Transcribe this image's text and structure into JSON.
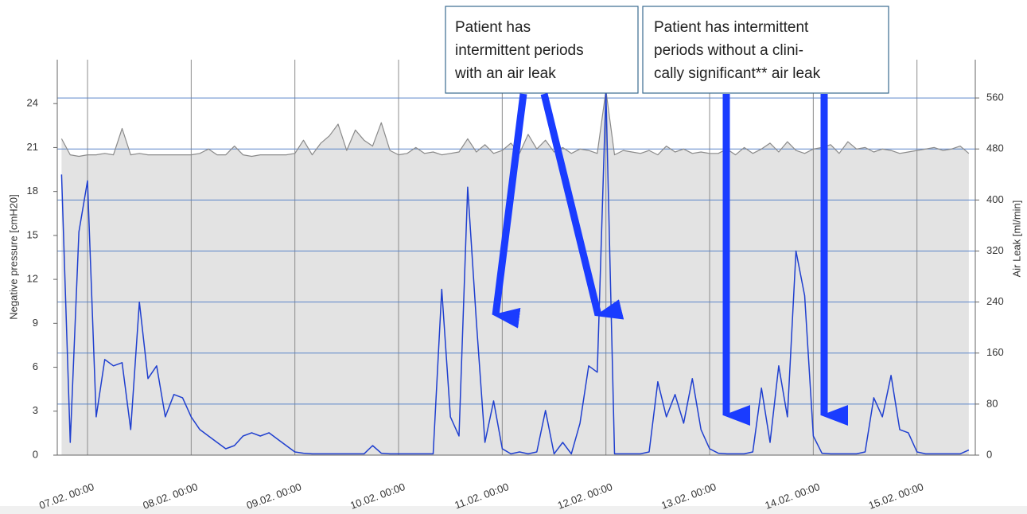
{
  "chart_data": {
    "type": "line",
    "y_label": "Negative pressure [cmH20]",
    "y2_label": "Air Leak [ml/min]",
    "x": [
      "06.02. 18:00",
      "06.02. 20:00",
      "06.02. 22:00",
      "07.02. 00:00",
      "07.02. 02:00",
      "07.02. 04:00",
      "07.02. 06:00",
      "07.02. 08:00",
      "07.02. 10:00",
      "07.02. 12:00",
      "07.02. 14:00",
      "07.02. 16:00",
      "07.02. 18:00",
      "07.02. 20:00",
      "07.02. 22:00",
      "08.02. 00:00",
      "08.02. 02:00",
      "08.02. 04:00",
      "08.02. 06:00",
      "08.02. 08:00",
      "08.02. 10:00",
      "08.02. 12:00",
      "08.02. 14:00",
      "08.02. 16:00",
      "08.02. 18:00",
      "08.02. 20:00",
      "08.02. 22:00",
      "09.02. 00:00",
      "09.02. 02:00",
      "09.02. 04:00",
      "09.02. 06:00",
      "09.02. 08:00",
      "09.02. 10:00",
      "09.02. 12:00",
      "09.02. 14:00",
      "09.02. 16:00",
      "09.02. 18:00",
      "09.02. 20:00",
      "09.02. 22:00",
      "10.02. 00:00",
      "10.02. 02:00",
      "10.02. 04:00",
      "10.02. 06:00",
      "10.02. 08:00",
      "10.02. 10:00",
      "10.02. 12:00",
      "10.02. 14:00",
      "10.02. 16:00",
      "10.02. 18:00",
      "10.02. 20:00",
      "10.02. 22:00",
      "11.02. 00:00",
      "11.02. 02:00",
      "11.02. 04:00",
      "11.02. 06:00",
      "11.02. 08:00",
      "11.02. 10:00",
      "11.02. 12:00",
      "11.02. 14:00",
      "11.02. 16:00",
      "11.02. 18:00",
      "11.02. 20:00",
      "11.02. 22:00",
      "12.02. 00:00",
      "12.02. 02:00",
      "12.02. 04:00",
      "12.02. 06:00",
      "12.02. 08:00",
      "12.02. 10:00",
      "12.02. 12:00",
      "12.02. 14:00",
      "12.02. 16:00",
      "12.02. 18:00",
      "12.02. 20:00",
      "12.02. 22:00",
      "13.02. 00:00",
      "13.02. 02:00",
      "13.02. 04:00",
      "13.02. 06:00",
      "13.02. 08:00",
      "13.02. 10:00",
      "13.02. 12:00",
      "13.02. 14:00",
      "13.02. 16:00",
      "13.02. 18:00",
      "13.02. 20:00",
      "13.02. 22:00",
      "14.02. 00:00",
      "14.02. 02:00",
      "14.02. 04:00",
      "14.02. 06:00",
      "14.02. 08:00",
      "14.02. 10:00",
      "14.02. 12:00",
      "14.02. 14:00",
      "14.02. 16:00",
      "14.02. 18:00",
      "14.02. 20:00",
      "14.02. 22:00",
      "15.02. 00:00",
      "15.02. 02:00",
      "15.02. 04:00",
      "15.02. 06:00",
      "15.02. 08:00",
      "15.02. 10:00",
      "15.02. 12:00"
    ],
    "series": [
      {
        "color": "#8a8a8a",
        "fill": "#e3e3e3",
        "axis": "y",
        "values": [
          21.6,
          20.5,
          20.4,
          20.5,
          20.5,
          20.6,
          20.5,
          22.3,
          20.5,
          20.6,
          20.5,
          20.5,
          20.5,
          20.5,
          20.5,
          20.5,
          20.6,
          20.9,
          20.5,
          20.5,
          21.1,
          20.5,
          20.4,
          20.5,
          20.5,
          20.5,
          20.5,
          20.6,
          21.5,
          20.5,
          21.3,
          21.8,
          22.6,
          20.8,
          22.2,
          21.5,
          21.1,
          22.7,
          20.8,
          20.5,
          20.6,
          21,
          20.6,
          20.7,
          20.5,
          20.6,
          20.7,
          21.6,
          20.7,
          21.2,
          20.6,
          20.8,
          21.3,
          20.6,
          21.9,
          20.9,
          21.5,
          20.7,
          21,
          20.6,
          20.9,
          20.8,
          20.6,
          24.9,
          20.5,
          20.8,
          20.7,
          20.6,
          20.8,
          20.5,
          21.1,
          20.7,
          20.9,
          20.6,
          20.7,
          20.6,
          20.6,
          20.9,
          20.5,
          21,
          20.6,
          20.9,
          21.3,
          20.7,
          21.4,
          20.8,
          20.6,
          20.9,
          21,
          21.2,
          20.6,
          21.4,
          20.9,
          21,
          20.7,
          20.9,
          20.8,
          20.6,
          20.7,
          20.8,
          20.9,
          21,
          20.8,
          20.9,
          21.1,
          20.6
        ]
      },
      {
        "color": "#1f3fcf",
        "axis": "y2",
        "values": [
          440,
          20,
          350,
          430,
          60,
          150,
          140,
          145,
          40,
          240,
          120,
          140,
          60,
          95,
          90,
          60,
          40,
          30,
          20,
          10,
          15,
          30,
          35,
          30,
          35,
          25,
          15,
          5,
          3,
          2,
          2,
          2,
          2,
          2,
          2,
          2,
          15,
          3,
          2,
          2,
          2,
          2,
          2,
          2,
          260,
          60,
          30,
          420,
          210,
          20,
          85,
          10,
          2,
          5,
          2,
          5,
          70,
          2,
          20,
          2,
          50,
          140,
          130,
          570,
          2,
          2,
          2,
          2,
          5,
          115,
          60,
          95,
          50,
          120,
          40,
          10,
          3,
          2,
          2,
          2,
          5,
          105,
          20,
          140,
          60,
          320,
          250,
          30,
          3,
          2,
          2,
          2,
          2,
          5,
          90,
          60,
          125,
          40,
          35,
          5,
          2,
          2,
          2,
          2,
          2,
          8
        ]
      }
    ],
    "xlim": [
      "06.02. 17:00",
      "15.02. 13:30"
    ],
    "xticks": [
      "07.02. 00:00",
      "08.02. 00:00",
      "09.02. 00:00",
      "10.02. 00:00",
      "11.02. 00:00",
      "12.02. 00:00",
      "13.02. 00:00",
      "14.02. 00:00",
      "15.02. 00:00"
    ],
    "ylim": [
      0,
      27
    ],
    "yticks": [
      0,
      3,
      6,
      9,
      12,
      15,
      18,
      21,
      24
    ],
    "y2lim": [
      0,
      620
    ],
    "y2ticks": [
      0,
      80,
      160,
      240,
      320,
      400,
      480,
      560
    ],
    "grid": true,
    "annotations": [
      {
        "lines": [
          "Patient has",
          "intermittent periods",
          "with an air leak"
        ]
      },
      {
        "lines": [
          "Patient has intermittent",
          "periods without a clini-",
          "cally significant** air leak"
        ]
      }
    ]
  }
}
